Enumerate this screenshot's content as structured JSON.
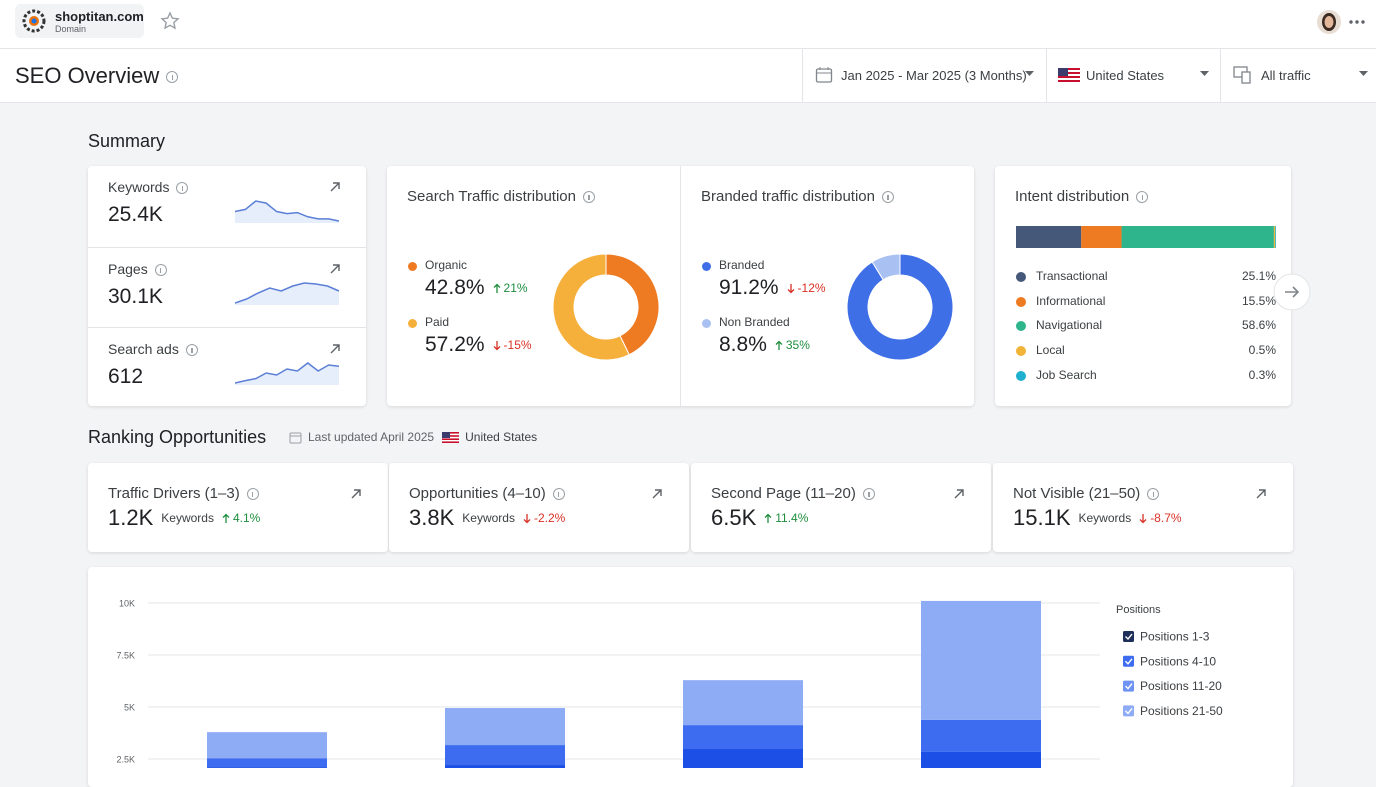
{
  "header": {
    "site": "shoptitan.com",
    "site_type": "Domain"
  },
  "page": {
    "title": "SEO Overview"
  },
  "filters": {
    "date_range": "Jan 2025 - Mar 2025 (3 Months)",
    "country": "United States",
    "traffic": "All traffic"
  },
  "summary": {
    "heading": "Summary",
    "metrics": [
      {
        "label": "Keywords",
        "value": "25.4K",
        "trend": [
          58,
          60,
          68,
          66,
          58,
          56,
          57,
          53,
          51,
          51,
          49
        ]
      },
      {
        "label": "Pages",
        "value": "30.1K",
        "trend": [
          40,
          44,
          50,
          55,
          52,
          57,
          60,
          59,
          57,
          52
        ]
      },
      {
        "label": "Search ads",
        "value": "612",
        "trend": [
          20,
          26,
          31,
          45,
          40,
          55,
          50,
          70,
          50,
          65,
          62
        ]
      }
    ],
    "search_traffic": {
      "title": "Search Traffic distribution",
      "segments": [
        {
          "name": "Organic",
          "color": "#ee7a22",
          "share": 42.8,
          "share_label": "42.8%",
          "direction": "up",
          "change": "21%"
        },
        {
          "name": "Paid",
          "color": "#f5b03c",
          "share": 57.2,
          "share_label": "57.2%",
          "direction": "down",
          "change": "-15%"
        }
      ]
    },
    "branded_traffic": {
      "title": "Branded traffic distribution",
      "segments": [
        {
          "name": "Branded",
          "color": "#3f6fe6",
          "share": 91.2,
          "share_label": "91.2%",
          "direction": "down",
          "change": "-12%"
        },
        {
          "name": "Non Branded",
          "color": "#a9c0f2",
          "share": 8.8,
          "share_label": "8.8%",
          "direction": "up",
          "change": "35%"
        }
      ]
    },
    "intent": {
      "title": "Intent distribution",
      "segments": [
        {
          "name": "Transactional",
          "color": "#46587a",
          "share": 25.1,
          "share_label": "25.1%"
        },
        {
          "name": "Informational",
          "color": "#ee7a22",
          "share": 15.5,
          "share_label": "15.5%"
        },
        {
          "name": "Navigational",
          "color": "#2fb58c",
          "share": 58.6,
          "share_label": "58.6%"
        },
        {
          "name": "Local",
          "color": "#f1b437",
          "share": 0.5,
          "share_label": "0.5%"
        },
        {
          "name": "Job Search",
          "color": "#1fb0d0",
          "share": 0.3,
          "share_label": "0.3%"
        }
      ]
    }
  },
  "ranking": {
    "heading": "Ranking Opportunities",
    "updated": "Last updated April 2025",
    "country": "United States",
    "cards": [
      {
        "title": "Traffic Drivers (1–3)",
        "value": "1.2K",
        "unit": "Keywords",
        "direction": "up",
        "change": "4.1%"
      },
      {
        "title": "Opportunities (4–10)",
        "value": "3.8K",
        "unit": "Keywords",
        "direction": "down",
        "change": "-2.2%"
      },
      {
        "title": "Second Page (11–20)",
        "value": "6.5K",
        "direction": "up",
        "change": "11.4%"
      },
      {
        "title": "Not Visible (21–50)",
        "value": "15.1K",
        "unit": "Keywords",
        "direction": "down",
        "change": "-8.7%"
      }
    ]
  },
  "chart_data": {
    "type": "bar",
    "stacked": true,
    "categories": [
      null,
      null,
      null,
      null
    ],
    "series": [
      {
        "name": "Positions 1-3",
        "color": "#1c4fe6",
        "values": [
          2110,
          2210,
          2980,
          2840
        ]
      },
      {
        "name": "Positions 4-10",
        "color": "#3d6cf0",
        "values": [
          430,
          960,
          1150,
          1540
        ]
      },
      {
        "name": "Positions 11-20",
        "color": "#6f93f3",
        "values": [
          0,
          0,
          0,
          0
        ]
      },
      {
        "name": "Positions 21-50",
        "color": "#8eabf5",
        "values": [
          1250,
          1780,
          2160,
          5720
        ]
      }
    ],
    "legend_title": "Positions",
    "legend": "right",
    "ylim": [
      0,
      10000
    ],
    "yticks": [
      {
        "value": 2500,
        "label": "2.5K"
      },
      {
        "value": 5000,
        "label": "5K"
      },
      {
        "value": 7500,
        "label": "7.5K"
      },
      {
        "value": 10000,
        "label": "10K"
      }
    ],
    "grid": true
  }
}
